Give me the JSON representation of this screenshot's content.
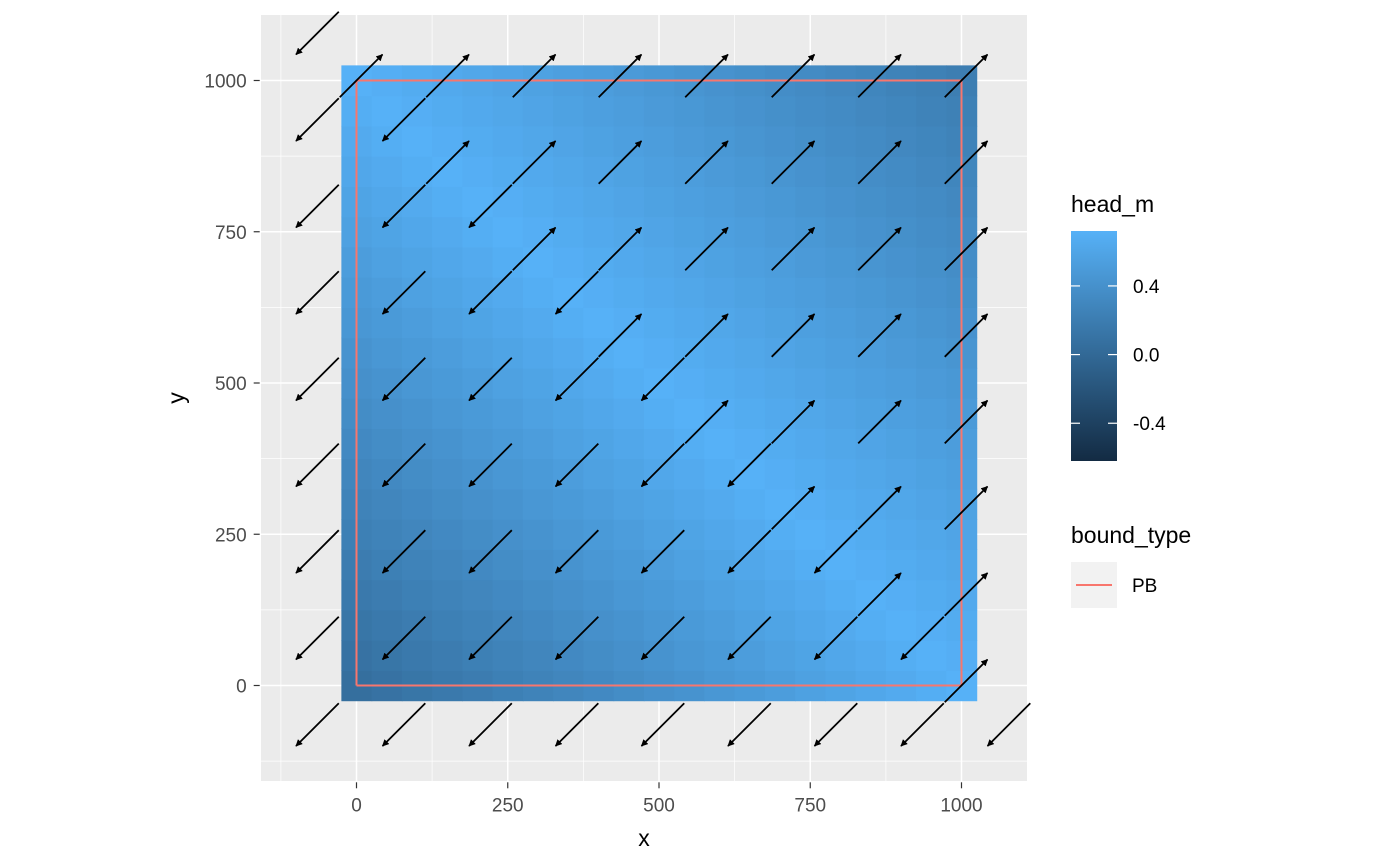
{
  "chart_data": {
    "type": "heatmap",
    "xlabel": "x",
    "ylabel": "y",
    "xlim": [
      -160,
      1110
    ],
    "ylim": [
      -160,
      1110
    ],
    "x_ticks": [
      0,
      250,
      500,
      750,
      1000
    ],
    "x_tick_labels": [
      "0",
      "250",
      "500",
      "750",
      "1000"
    ],
    "y_ticks": [
      0,
      250,
      500,
      750,
      1000
    ],
    "y_tick_labels": [
      "0",
      "250",
      "500",
      "750",
      "1000"
    ],
    "grid": true,
    "raster": {
      "x_min": -25,
      "x_max": 1025,
      "y_min": -25,
      "y_max": 1025,
      "cells": 21,
      "variable": "head_m",
      "value_range": [
        -0.62,
        0.72
      ],
      "description_formula": "peak ridge along x+y=1000"
    },
    "boundary": {
      "name": "PB",
      "x": [
        0,
        1000,
        1000,
        0,
        0
      ],
      "y": [
        0,
        0,
        1000,
        1000,
        0
      ],
      "color": "#F8766D"
    },
    "vectors": {
      "grid_x": [
        -100,
        43,
        186,
        329,
        471,
        614,
        757,
        900,
        1043
      ],
      "grid_y": [
        -100,
        43,
        186,
        329,
        471,
        614,
        757,
        900,
        1043
      ],
      "length": 100,
      "color": "#000000"
    },
    "legend": {
      "fill_title": "head_m",
      "fill_ticks": [
        0.4,
        0.0,
        -0.4
      ],
      "fill_tick_labels": [
        "0.4",
        "0.0",
        "-0.4"
      ],
      "fill_colors": [
        "#132B43",
        "#56B1F7"
      ],
      "line_title": "bound_type",
      "line_entries": [
        "PB"
      ],
      "placement": "right"
    }
  }
}
